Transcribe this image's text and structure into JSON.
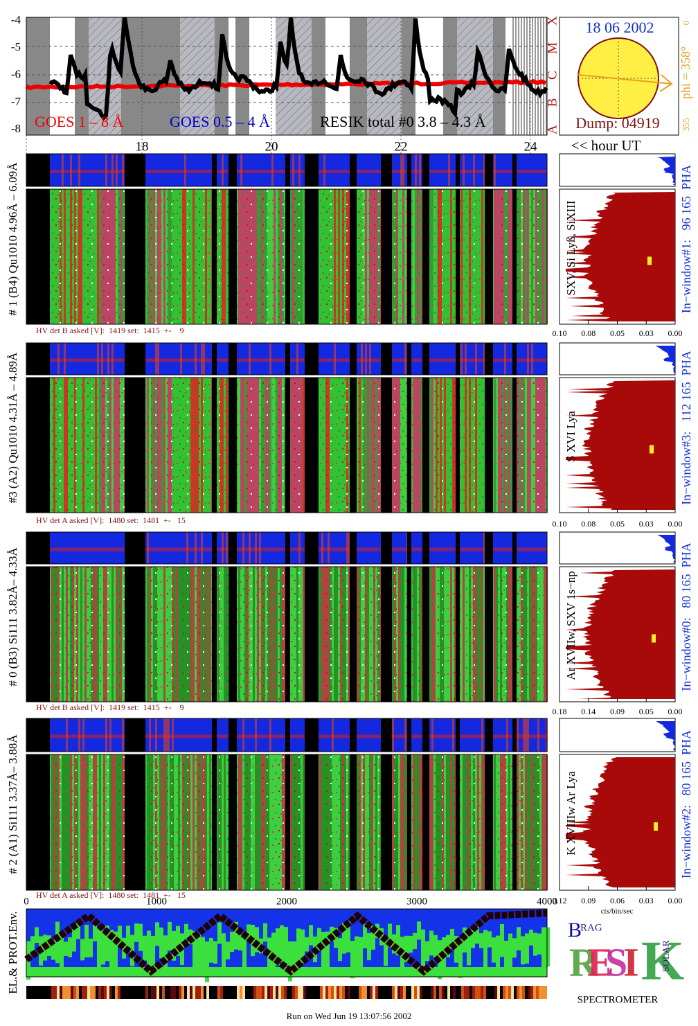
{
  "goes": {
    "y_ticks": [
      "-4",
      "-5",
      "-6",
      "-7",
      "-8"
    ],
    "class_letters": [
      "X",
      "M",
      "C",
      "B",
      "A"
    ],
    "legend": [
      "GOES 1 – 8 Å",
      "GOES 0.5 – 4 Å",
      "RESIK total #0  3.8 – 4.3 Å"
    ],
    "hour_ticks": [
      "18",
      "20",
      "22",
      "24"
    ],
    "hour_label": "<< hour UT"
  },
  "sun": {
    "date": "18 06 2002",
    "dump": "Dump: 04919",
    "phi": "phi = 358°",
    "scale": [
      "0",
      "355"
    ]
  },
  "panels": [
    {
      "label": "# 1 (B4) Qu1010 4.96Å – 6.09Å",
      "hv": "HV det B asked [V]:  1419 set:  1415  +-    9",
      "line_label": "SXV, Si Lyß, SiXIII",
      "window": "In−window#1:   96 165  PHA",
      "ticks": [
        "0.10",
        "0.08",
        "0.05",
        "0.03",
        "0.00"
      ]
    },
    {
      "label": "#3 (A2) Qu1010  4.31Å – 4.89Å",
      "hv": "HV det A asked [V]:  1480 set:  1481  +-   15",
      "line_label": "S XVI Lya",
      "window": "In−window#3:   112 165  PHA",
      "ticks": [
        "0.10",
        "0.08",
        "0.05",
        "0.03",
        "0.00"
      ]
    },
    {
      "label": "# 0 (B3) Si111  3.82Å– 4.33Å",
      "hv": "HV det B asked [V]:  1419 set:  1415  +-    9",
      "line_label": "Ar XVIIw,  SXV 1s−np",
      "window": "In−window#0:   80 165  PHA",
      "ticks": [
        "0.18",
        "0.14",
        "0.09",
        "0.05",
        "0.00"
      ]
    },
    {
      "label": "# 2 (A1) Si111  3.37Å– 3.88Å",
      "hv": "HV det A asked [V]:  1480 set:  1481  +-   15",
      "line_label": "K XVIIIw  Ar Lya",
      "window": "In−window#2:   80 165  PHA",
      "ticks": [
        "0.12",
        "0.09",
        "0.06",
        "0.03",
        "0.00"
      ]
    }
  ],
  "histogram_unit": "cts/bin/sec",
  "bottom": {
    "x_ticks": [
      "0",
      "1000",
      "2000",
      "3000",
      "4000"
    ],
    "label": "EL.& PROT.Env."
  },
  "logo": {
    "b": "B",
    "rag": "RAG",
    "big": [
      "R",
      "E",
      "S",
      "I",
      "K"
    ],
    "solar": "SOLAR",
    "name": "SPECTROMETER"
  },
  "footer": "Run on Wed Jun 19 13:07:56 2002"
}
